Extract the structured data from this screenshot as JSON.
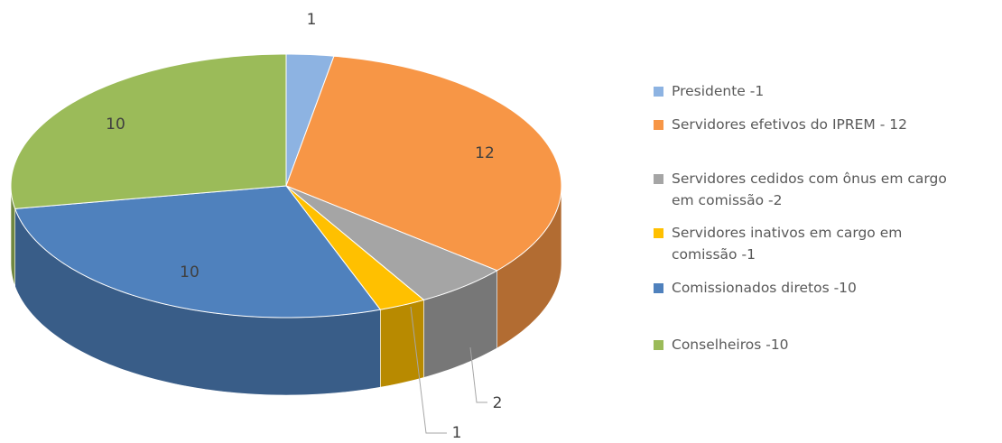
{
  "chart_data": {
    "type": "pie3d",
    "categories": [
      "Presidente -1",
      "Servidores efetivos do IPREM - 12",
      "Servidores cedidos com ônus em cargo em comissão -2",
      "Servidores inativos em cargo em comissão -1",
      "Comissionados diretos -10",
      "Conselheiros -10"
    ],
    "values": [
      1,
      12,
      2,
      1,
      10,
      10
    ],
    "colors": [
      "#8db3e2",
      "#f79646",
      "#a5a5a5",
      "#ffc000",
      "#4f81bd",
      "#9bbb59"
    ],
    "legend": "right"
  }
}
